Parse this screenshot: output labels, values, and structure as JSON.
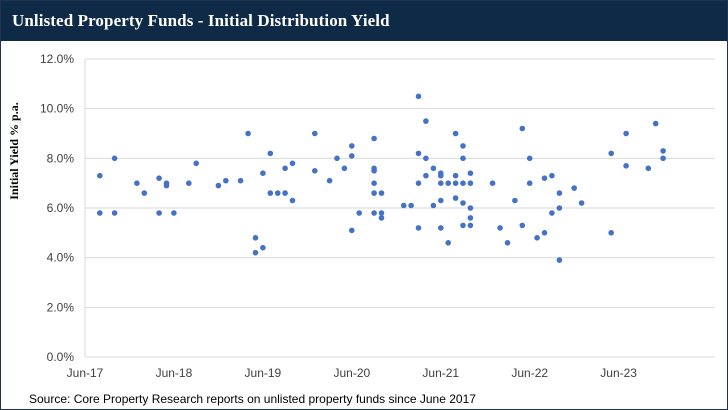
{
  "header": {
    "title": "Unlisted Property Funds - Initial Distribution Yield"
  },
  "source": {
    "text": "Source: Core Property Research reports on unlisted property funds since June 2017"
  },
  "colors": {
    "header_bg": "#0f2a47",
    "point": "#4472c4",
    "grid": "#d9d9d9"
  },
  "chart_data": {
    "type": "scatter",
    "title": "Unlisted Property Funds - Initial Distribution Yield",
    "xlabel": "",
    "ylabel": "Initial Yield % p.a.",
    "xlim": [
      "Jun-17",
      "Jul-24"
    ],
    "ylim": [
      0,
      12
    ],
    "grid": "horizontal",
    "legend": "none",
    "x_ticks": [
      "Jun-17",
      "Jun-18",
      "Jun-19",
      "Jun-20",
      "Jun-21",
      "Jun-22",
      "Jun-23"
    ],
    "y_ticks": [
      "0.0%",
      "2.0%",
      "4.0%",
      "6.0%",
      "8.0%",
      "10.0%",
      "12.0%"
    ],
    "y_tick_values": [
      0,
      2,
      4,
      6,
      8,
      10,
      12
    ],
    "points": [
      {
        "x": "2017-08",
        "y": 7.3
      },
      {
        "x": "2017-08",
        "y": 5.8
      },
      {
        "x": "2017-10",
        "y": 8.0
      },
      {
        "x": "2017-10",
        "y": 5.8
      },
      {
        "x": "2018-01",
        "y": 7.0
      },
      {
        "x": "2018-02",
        "y": 6.6
      },
      {
        "x": "2018-04",
        "y": 7.2
      },
      {
        "x": "2018-04",
        "y": 5.8
      },
      {
        "x": "2018-05",
        "y": 7.0
      },
      {
        "x": "2018-05",
        "y": 6.9
      },
      {
        "x": "2018-06",
        "y": 5.8
      },
      {
        "x": "2018-08",
        "y": 7.0
      },
      {
        "x": "2018-09",
        "y": 7.8
      },
      {
        "x": "2018-12",
        "y": 6.9
      },
      {
        "x": "2019-01",
        "y": 7.1
      },
      {
        "x": "2019-03",
        "y": 7.1
      },
      {
        "x": "2019-04",
        "y": 9.0
      },
      {
        "x": "2019-05",
        "y": 4.8
      },
      {
        "x": "2019-05",
        "y": 4.2
      },
      {
        "x": "2019-06",
        "y": 7.4
      },
      {
        "x": "2019-06",
        "y": 4.4
      },
      {
        "x": "2019-07",
        "y": 8.2
      },
      {
        "x": "2019-07",
        "y": 6.6
      },
      {
        "x": "2019-08",
        "y": 6.6
      },
      {
        "x": "2019-09",
        "y": 7.6
      },
      {
        "x": "2019-09",
        "y": 6.6
      },
      {
        "x": "2019-10",
        "y": 7.8
      },
      {
        "x": "2019-10",
        "y": 6.3
      },
      {
        "x": "2020-01",
        "y": 9.0
      },
      {
        "x": "2020-01",
        "y": 7.5
      },
      {
        "x": "2020-03",
        "y": 7.1
      },
      {
        "x": "2020-04",
        "y": 8.0
      },
      {
        "x": "2020-05",
        "y": 7.6
      },
      {
        "x": "2020-06",
        "y": 8.5
      },
      {
        "x": "2020-06",
        "y": 8.1
      },
      {
        "x": "2020-06",
        "y": 5.1
      },
      {
        "x": "2020-07",
        "y": 5.8
      },
      {
        "x": "2020-09",
        "y": 8.8
      },
      {
        "x": "2020-09",
        "y": 7.6
      },
      {
        "x": "2020-09",
        "y": 7.5
      },
      {
        "x": "2020-09",
        "y": 7.0
      },
      {
        "x": "2020-09",
        "y": 6.6
      },
      {
        "x": "2020-09",
        "y": 5.8
      },
      {
        "x": "2020-10",
        "y": 6.6
      },
      {
        "x": "2020-10",
        "y": 5.8
      },
      {
        "x": "2020-10",
        "y": 5.6
      },
      {
        "x": "2021-01",
        "y": 6.1
      },
      {
        "x": "2021-02",
        "y": 6.1
      },
      {
        "x": "2021-03",
        "y": 10.5
      },
      {
        "x": "2021-03",
        "y": 8.2
      },
      {
        "x": "2021-03",
        "y": 7.0
      },
      {
        "x": "2021-03",
        "y": 5.2
      },
      {
        "x": "2021-04",
        "y": 9.5
      },
      {
        "x": "2021-04",
        "y": 8.0
      },
      {
        "x": "2021-04",
        "y": 7.3
      },
      {
        "x": "2021-05",
        "y": 7.6
      },
      {
        "x": "2021-05",
        "y": 6.1
      },
      {
        "x": "2021-06",
        "y": 7.4
      },
      {
        "x": "2021-06",
        "y": 7.3
      },
      {
        "x": "2021-06",
        "y": 7.0
      },
      {
        "x": "2021-06",
        "y": 6.3
      },
      {
        "x": "2021-06",
        "y": 5.2
      },
      {
        "x": "2021-07",
        "y": 7.0
      },
      {
        "x": "2021-07",
        "y": 4.6
      },
      {
        "x": "2021-08",
        "y": 9.0
      },
      {
        "x": "2021-08",
        "y": 7.3
      },
      {
        "x": "2021-08",
        "y": 7.0
      },
      {
        "x": "2021-08",
        "y": 6.4
      },
      {
        "x": "2021-09",
        "y": 8.5
      },
      {
        "x": "2021-09",
        "y": 8.0
      },
      {
        "x": "2021-09",
        "y": 7.0
      },
      {
        "x": "2021-09",
        "y": 6.2
      },
      {
        "x": "2021-09",
        "y": 5.3
      },
      {
        "x": "2021-10",
        "y": 7.4
      },
      {
        "x": "2021-10",
        "y": 7.0
      },
      {
        "x": "2021-10",
        "y": 6.0
      },
      {
        "x": "2021-10",
        "y": 5.6
      },
      {
        "x": "2021-10",
        "y": 5.3
      },
      {
        "x": "2022-01",
        "y": 7.0
      },
      {
        "x": "2022-02",
        "y": 5.2
      },
      {
        "x": "2022-03",
        "y": 4.6
      },
      {
        "x": "2022-04",
        "y": 6.3
      },
      {
        "x": "2022-05",
        "y": 9.2
      },
      {
        "x": "2022-05",
        "y": 5.3
      },
      {
        "x": "2022-06",
        "y": 8.0
      },
      {
        "x": "2022-06",
        "y": 7.0
      },
      {
        "x": "2022-07",
        "y": 4.8
      },
      {
        "x": "2022-08",
        "y": 7.2
      },
      {
        "x": "2022-08",
        "y": 5.0
      },
      {
        "x": "2022-09",
        "y": 7.3
      },
      {
        "x": "2022-09",
        "y": 5.8
      },
      {
        "x": "2022-10",
        "y": 6.6
      },
      {
        "x": "2022-10",
        "y": 6.0
      },
      {
        "x": "2022-10",
        "y": 3.9
      },
      {
        "x": "2022-12",
        "y": 6.8
      },
      {
        "x": "2023-01",
        "y": 6.2
      },
      {
        "x": "2023-05",
        "y": 8.2
      },
      {
        "x": "2023-05",
        "y": 5.0
      },
      {
        "x": "2023-07",
        "y": 9.0
      },
      {
        "x": "2023-07",
        "y": 7.7
      },
      {
        "x": "2023-10",
        "y": 7.6
      },
      {
        "x": "2023-11",
        "y": 9.4
      },
      {
        "x": "2023-12",
        "y": 8.3
      },
      {
        "x": "2023-12",
        "y": 8.0
      }
    ]
  }
}
